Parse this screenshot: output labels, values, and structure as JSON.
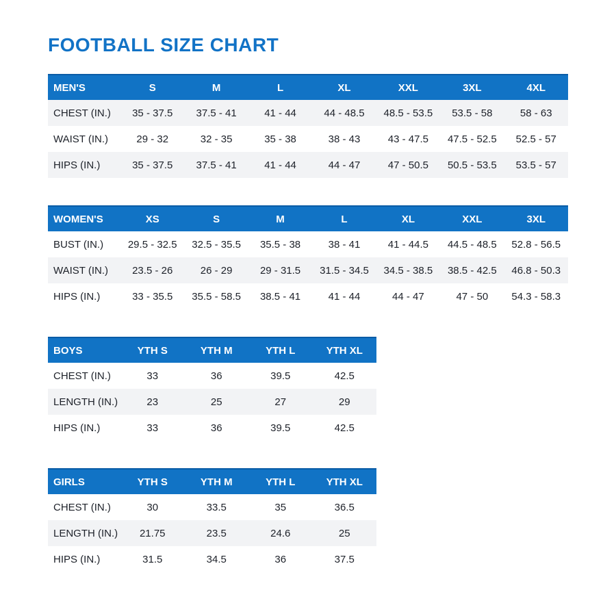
{
  "page": {
    "title": "FOOTBALL SIZE CHART"
  },
  "colors": {
    "accent_blue": "#1273c6",
    "header_bg": "#1173c5",
    "header_top_edge": "#0a5ca6",
    "header_text": "#ffffff",
    "row_stripe": "#f2f3f5",
    "body_text": "#1d2129",
    "background": "#ffffff"
  },
  "tables": [
    {
      "id": "mens",
      "group_label": "MEN'S",
      "size_headers": [
        "S",
        "M",
        "L",
        "XL",
        "XXL",
        "3XL",
        "4XL"
      ],
      "rows": [
        {
          "label": "CHEST (IN.)",
          "shaded": true,
          "values": [
            "35 - 37.5",
            "37.5 - 41",
            "41 - 44",
            "44 - 48.5",
            "48.5 - 53.5",
            "53.5 - 58",
            "58 - 63"
          ]
        },
        {
          "label": "WAIST (IN.)",
          "shaded": false,
          "values": [
            "29 - 32",
            "32 - 35",
            "35 - 38",
            "38 - 43",
            "43 - 47.5",
            "47.5 - 52.5",
            "52.5 - 57"
          ]
        },
        {
          "label": "HIPS (IN.)",
          "shaded": true,
          "values": [
            "35 - 37.5",
            "37.5 - 41",
            "41 - 44",
            "44 - 47",
            "47 - 50.5",
            "50.5 - 53.5",
            "53.5 - 57"
          ]
        }
      ]
    },
    {
      "id": "womens",
      "group_label": "WOMEN'S",
      "size_headers": [
        "XS",
        "S",
        "M",
        "L",
        "XL",
        "XXL",
        "3XL"
      ],
      "rows": [
        {
          "label": "BUST (IN.)",
          "shaded": false,
          "values": [
            "29.5 - 32.5",
            "32.5 - 35.5",
            "35.5 - 38",
            "38 - 41",
            "41 - 44.5",
            "44.5 - 48.5",
            "52.8 - 56.5"
          ]
        },
        {
          "label": "WAIST (IN.)",
          "shaded": true,
          "values": [
            "23.5 - 26",
            "26 - 29",
            "29 - 31.5",
            "31.5 - 34.5",
            "34.5 - 38.5",
            "38.5 - 42.5",
            "46.8 - 50.3"
          ]
        },
        {
          "label": "HIPS (IN.)",
          "shaded": false,
          "values": [
            "33 - 35.5",
            "35.5 - 58.5",
            "38.5 - 41",
            "41 - 44",
            "44 - 47",
            "47 - 50",
            "54.3 - 58.3"
          ]
        }
      ]
    },
    {
      "id": "boys",
      "group_label": "BOYS",
      "size_headers": [
        "YTH S",
        "YTH M",
        "YTH L",
        "YTH XL"
      ],
      "rows": [
        {
          "label": "CHEST (IN.)",
          "shaded": false,
          "values": [
            "33",
            "36",
            "39.5",
            "42.5"
          ]
        },
        {
          "label": "LENGTH (IN.)",
          "shaded": true,
          "values": [
            "23",
            "25",
            "27",
            "29"
          ]
        },
        {
          "label": "HIPS (IN.)",
          "shaded": false,
          "values": [
            "33",
            "36",
            "39.5",
            "42.5"
          ]
        }
      ]
    },
    {
      "id": "girls",
      "group_label": "GIRLS",
      "size_headers": [
        "YTH S",
        "YTH M",
        "YTH L",
        "YTH XL"
      ],
      "rows": [
        {
          "label": "CHEST (IN.)",
          "shaded": false,
          "values": [
            "30",
            "33.5",
            "35",
            "36.5"
          ]
        },
        {
          "label": "LENGTH (IN.)",
          "shaded": true,
          "values": [
            "21.75",
            "23.5",
            "24.6",
            "25"
          ]
        },
        {
          "label": "HIPS (IN.)",
          "shaded": false,
          "values": [
            "31.5",
            "34.5",
            "36",
            "37.5"
          ]
        }
      ]
    }
  ]
}
